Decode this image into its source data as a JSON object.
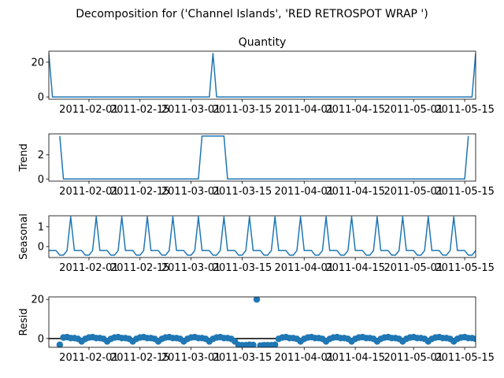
{
  "suptitle": "Decomposition for ('Channel Islands', 'RED RETROSPOT WRAP ')",
  "chart_data": [
    {
      "type": "line",
      "panel": "observed",
      "title": "Quantity",
      "ylabel": "",
      "x_range": [
        "2011-01-21",
        "2011-05-18"
      ],
      "ylim": [
        -1.3,
        26.3
      ],
      "yticks": [
        0,
        20
      ],
      "xticks": [
        "2011-02-01",
        "2011-02-15",
        "2011-03-01",
        "2011-03-15",
        "2011-04-01",
        "2011-04-15",
        "2011-05-01",
        "2011-05-15"
      ],
      "series": [
        {
          "points": [
            [
              "2011-01-21",
              25
            ],
            [
              "2011-01-22",
              0
            ],
            [
              "2011-03-06",
              0
            ],
            [
              "2011-03-07",
              25
            ],
            [
              "2011-03-08",
              0
            ],
            [
              "2011-05-17",
              0
            ],
            [
              "2011-05-18",
              25
            ]
          ]
        }
      ]
    },
    {
      "type": "line",
      "panel": "trend",
      "title": "",
      "ylabel": "Trend",
      "x_range": [
        "2011-01-21",
        "2011-05-18"
      ],
      "ylim": [
        -0.18,
        3.75
      ],
      "yticks": [
        0,
        2
      ],
      "xticks": [
        "2011-02-01",
        "2011-02-15",
        "2011-03-01",
        "2011-03-15",
        "2011-04-01",
        "2011-04-15",
        "2011-05-01",
        "2011-05-15"
      ],
      "series": [
        {
          "points": [
            [
              "2011-01-24",
              3.57
            ],
            [
              "2011-01-25",
              0
            ],
            [
              "2011-03-03",
              0
            ],
            [
              "2011-03-04",
              3.57
            ],
            [
              "2011-03-10",
              3.57
            ],
            [
              "2011-03-11",
              0
            ],
            [
              "2011-05-15",
              0
            ],
            [
              "2011-05-16",
              3.57
            ]
          ]
        }
      ]
    },
    {
      "type": "line",
      "panel": "seasonal",
      "title": "",
      "ylabel": "Seasonal",
      "x_range": [
        "2011-01-21",
        "2011-05-18"
      ],
      "ylim": [
        -0.55,
        1.55
      ],
      "yticks": [
        0,
        1
      ],
      "xticks": [
        "2011-02-01",
        "2011-02-15",
        "2011-03-01",
        "2011-03-15",
        "2011-04-01",
        "2011-04-15",
        "2011-05-01",
        "2011-05-15"
      ],
      "series": [
        {
          "weekly_pattern": [
            -0.2,
            -0.2,
            -0.2,
            -0.43,
            -0.43,
            -0.2,
            1.5
          ],
          "pattern_start": "2011-01-21",
          "x_end": "2011-05-18"
        }
      ]
    },
    {
      "type": "scatter",
      "panel": "resid",
      "title": "",
      "ylabel": "Resid",
      "x_range": [
        "2011-01-21",
        "2011-05-18"
      ],
      "ylim": [
        -4.5,
        21.3
      ],
      "yticks": [
        0,
        20
      ],
      "xticks": [
        "2011-02-01",
        "2011-02-15",
        "2011-03-01",
        "2011-03-15",
        "2011-04-01",
        "2011-04-15",
        "2011-05-01",
        "2011-05-15"
      ],
      "baseline": 0,
      "series": [
        {
          "x_start": "2011-01-24",
          "values": [
            -3.2,
            0.5,
            0.7,
            0.2,
            0.2,
            -0.2,
            -1.5,
            -0.2,
            0.5,
            0.7,
            0.2,
            0.2,
            -0.2,
            -1.5,
            -0.2,
            0.5,
            0.7,
            0.2,
            0.2,
            -0.2,
            -1.5,
            -0.2,
            0.5,
            0.7,
            0.2,
            0.2,
            -0.2,
            -1.5,
            -0.2,
            0.5,
            0.7,
            0.2,
            0.2,
            -0.2,
            -1.5,
            -0.2,
            0.5,
            0.7,
            0.2,
            0.2,
            -0.2,
            -1.5,
            -0.2,
            0.5,
            0.7,
            0.2,
            0.2,
            -0.2,
            -1.5,
            -3.3,
            -3.4,
            -3.4,
            -3.2,
            -3.3,
            20,
            -3.6,
            -3.4,
            -3.4,
            -3.4,
            -3.2,
            -0.2,
            0.5,
            0.7,
            0.2,
            0.2,
            -0.2,
            -1.5,
            -0.2,
            0.5,
            0.7,
            0.2,
            0.2,
            -0.2,
            -1.5,
            -0.2,
            0.5,
            0.7,
            0.2,
            0.2,
            -0.2,
            -1.5,
            -0.2,
            0.5,
            0.7,
            0.2,
            0.2,
            -0.2,
            -1.5,
            -0.2,
            0.5,
            0.7,
            0.2,
            0.2,
            -0.2,
            -1.5,
            -0.2,
            0.5,
            0.7,
            0.2,
            0.2,
            -0.2,
            -1.5,
            -0.2,
            0.5,
            0.7,
            0.2,
            0.2,
            -0.2,
            -1.5,
            -0.2,
            0.5,
            0.7,
            0.2,
            0.2,
            -0.2,
            -1.5,
            -0.2,
            0.5,
            0.7,
            -3.2
          ]
        }
      ]
    }
  ],
  "colors": {
    "line": "#1f77b4",
    "baseline": "#000000",
    "axis": "#000000"
  }
}
